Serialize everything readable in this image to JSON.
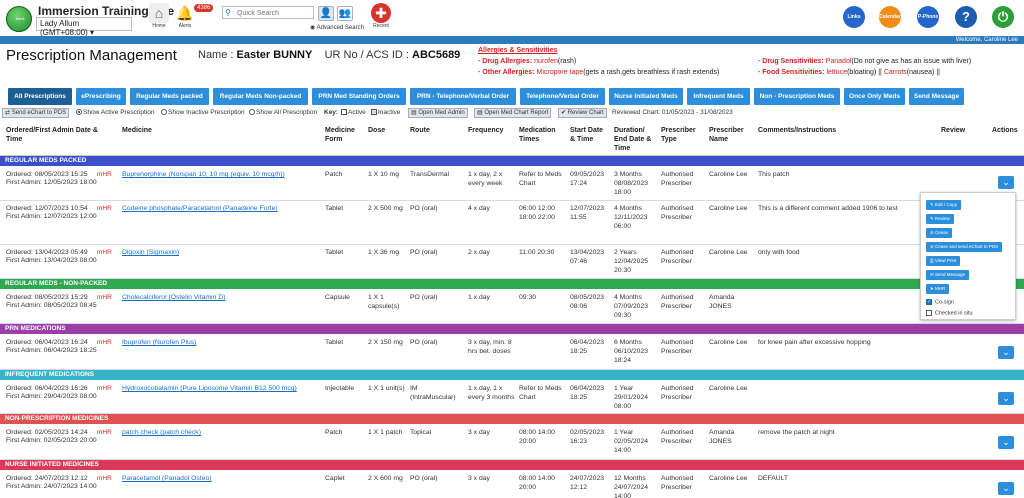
{
  "topbar": {
    "logo_text": "Medi",
    "site_title": "Immersion Training Site",
    "user_select": "Lady Allum (GMT+08:00)",
    "home_label": "Home",
    "alerts_label": "Alerts",
    "alerts_count": "4386",
    "search_placeholder": "Quick Search",
    "advanced_search": "Advanced Search",
    "recent_label": "Recent",
    "links_label": "Links",
    "calendar_label": "Calendar",
    "phone_label": "P-Phone",
    "welcome": "Welcome, Caroline Lee"
  },
  "header": {
    "title": "Prescription Management",
    "name_label": "Name :",
    "name_value": "Easter BUNNY",
    "ur_label": "UR No / ACS ID :",
    "ur_value": "ABC5689",
    "allergies_heading": "Allergies & Sensitivities",
    "drug_allergies_label": "Drug Allergies:",
    "drug_allergies_value": "nurofen",
    "drug_allergies_note": "(rash)",
    "other_allergies_label": "Other Allergies:",
    "other_allergies_value": "Micropore tape",
    "other_allergies_note": "(gets a rash,gets breathless if rash extends)",
    "drug_sens_label": "Drug Sensitivities:",
    "drug_sens_value": "Panadol",
    "drug_sens_note": "(Do not give as has an issue with liver)",
    "food_sens_label": "Food Sensitivities:",
    "food_sens_value1": "lettuce",
    "food_sens_note1": "(bloating) ||",
    "food_sens_value2": "Carrots",
    "food_sens_note2": "(nausea) ||"
  },
  "tabs": [
    "All Prescriptions",
    "ePrescribing",
    "Regular Meds packed",
    "Regular Meds Non-packed",
    "PRN Med Standing Orders",
    "PRN - Telephone/Verbal Order",
    "Telephone/Verbal Order",
    "Nurse Initiated Meds",
    "Infrequent Meds",
    "Non - Prescription Meds",
    "Once Only Meds",
    "Send Message"
  ],
  "toolbar": {
    "send_echart": "Send eChart to PDS",
    "show_active": "Show Active Prescription",
    "show_inactive": "Show Inactive Prescription",
    "show_all": "Show All Prescription",
    "key_label": "Key:",
    "active_label": "Active",
    "inactive_label": "Inactive",
    "open_med_admin": "Open Med Admin",
    "open_med_chart_report": "Open Med Chart Report",
    "review_chart": "Review Chart",
    "reviewed_chart": "Reviewed Chart: 01/05/2023 - 31/08/2023"
  },
  "columns": {
    "ordered": "Ordered/First Admin Date & Time",
    "medicine": "Medicine",
    "form": "Medicine Form",
    "dose": "Dose",
    "route": "Route",
    "frequency": "Frequency",
    "times": "Medication Times",
    "start": "Start Date & Time",
    "duration": "Duration/ End Date & Time",
    "prescriber_type": "Prescriber Type",
    "prescriber_name": "Prescriber Name",
    "comments": "Comments/Instructions",
    "review": "Review",
    "actions": "Actions"
  },
  "sections": {
    "regular_packed": "REGULAR MEDS PACKED",
    "regular_nonpacked": "REGULAR MEDS - NON-PACKED",
    "prn": "PRN MEDICATIONS",
    "infrequent": "INFREQUENT MEDICATIONS",
    "nonprescription": "NON-PRESCRIPTION MEDICINES",
    "nurse_initiated": "NURSE INITIATED MEDICINES"
  },
  "section_colors": {
    "regular_packed": "#3b4fc8",
    "regular_nonpacked": "#2fa84f",
    "prn": "#9b3fa6",
    "infrequent": "#36b3c9",
    "nonprescription": "#e05252",
    "nurse_initiated": "#d93a5a"
  },
  "rows": [
    {
      "ordered": "Ordered: 08/05/2023 15:25",
      "first": "First Admin: 12/05/2023 18:00",
      "mhr": "mHR",
      "medicine": "Buprenorphine (Norspan 10; 10 mg (equiv. 10 mcg/h))",
      "form": "Patch",
      "dose": "1 X 10 mg",
      "route": "TransDermal",
      "frequency": "1 x day, 2 x every week",
      "times": "Refer to Meds Chart",
      "start": "09/05/2023 17:24",
      "duration": "3 Months 08/08/2023 18:00",
      "ptype": "Authorised Prescriber",
      "pname": "Caroline Lee",
      "comments": "This patch"
    },
    {
      "ordered": "Ordered: 12/07/2023 10:54",
      "first": "First Admin: 12/07/2023 12:00",
      "mhr": "mHR",
      "medicine": "Codeine phosphate/Paracetamol (Panadeine Forte)",
      "form": "Tablet",
      "dose": "2 X 500 mg",
      "route": "PO (oral)",
      "frequency": "4 x day",
      "times": "06:00 12:00 18:00 22:00",
      "start": "12/07/2023 11:55",
      "duration": "4 Months 12/11/2023 06:00",
      "ptype": "Authorised Prescriber",
      "pname": "Caroline Lee",
      "comments": "This is a different comment added 1906 to test"
    },
    {
      "ordered": "Ordered: 13/04/2023 05:49",
      "first": "First Admin: 13/04/2023 08:00",
      "mhr": "mHR",
      "medicine": "Digoxin (Sigmaxin)",
      "form": "Tablet",
      "dose": "1 X 36 mg",
      "route": "PO (oral)",
      "frequency": "2 x day",
      "times": "11:00 20:30",
      "start": "13/04/2023 07:46",
      "duration": "2 Years 12/04/2025 20:30",
      "ptype": "Authorised Prescriber",
      "pname": "Caroline Lee",
      "comments": "only with food"
    },
    {
      "ordered": "Ordered: 08/05/2023 15:29",
      "first": "First Admin: 08/05/2023 08:45",
      "mhr": "mHR",
      "medicine": "Cholecalciferol (Ostelin Vitamin D)",
      "form": "Capsule",
      "dose": "1 X 1 capsule(s)",
      "route": "PO (oral)",
      "frequency": "1 x day",
      "times": "09:30",
      "start": "08/05/2023 08:06",
      "duration": "4 Months 07/09/2023 09:30",
      "ptype": "Authorised Prescriber",
      "pname": "Amanda JONES",
      "comments": ""
    },
    {
      "ordered": "Ordered: 06/04/2023 16:24",
      "first": "First Admin: 06/04/2023 18:25",
      "mhr": "mHR",
      "medicine": "Ibuprofen (Nurofen Plus)",
      "form": "Tablet",
      "dose": "2 X 150 mg",
      "route": "PO (oral)",
      "frequency": "3 x day, min. 8 hrs bet. doses",
      "times": "",
      "start": "06/04/2023 18:25",
      "duration": "6 Months 06/10/2023 18:24",
      "ptype": "Authorised Prescriber",
      "pname": "Caroline Lee",
      "comments": "for knee pain after excessive hopping"
    },
    {
      "ordered": "Ordered: 06/04/2023 16:26",
      "first": "First Admin: 29/04/2023 08:00",
      "mhr": "mHR",
      "medicine": "Hydroxocobalamin (Pure Liposome Vitamin B12 500 mcg)",
      "form": "Injectable",
      "dose": "1 X 1 unit(s)",
      "route": "IM (IntraMuscular)",
      "frequency": "1 x day, 1 x every 3 months",
      "times": "Refer to Meds Chart",
      "start": "06/04/2023 18:25",
      "duration": "1 Year 29/01/2024 08:00",
      "ptype": "Authorised Prescriber",
      "pname": "Caroline Lee",
      "comments": ""
    },
    {
      "ordered": "Ordered: 02/05/2023 14:24",
      "first": "First Admin: 02/05/2023 20:00",
      "mhr": "mHR",
      "medicine": "patch check (patch check)",
      "form": "Patch",
      "dose": "1 X 1 patch",
      "route": "Topical",
      "frequency": "3 x day",
      "times": "08:00 14:00 20:00",
      "start": "02/05/2023 16:23",
      "duration": "1 Year 02/05/2024 14:00",
      "ptype": "Authorised Prescriber",
      "pname": "Amanda JONES",
      "comments": "remove the patch at night"
    },
    {
      "ordered": "Ordered: 24/07/2023 12:12",
      "first": "First Admin: 24/07/2023 14:00",
      "mhr": "mHR",
      "medicine": "Paracetamol (Panadol Osteo)",
      "form": "Caplet",
      "dose": "2 X 600 mg",
      "route": "PO (oral)",
      "frequency": "3 x day",
      "times": "08:00 14:00 20:00",
      "start": "24/07/2023 12:12",
      "duration": "12 Months 24/07/2024 14:00",
      "ptype": "Authorised Prescriber",
      "pname": "Caroline Lee",
      "comments": "DEFAULT"
    }
  ],
  "action_menu": {
    "edit": "Edit / Copy",
    "review": "Review",
    "cease": "Cease",
    "cease_send": "Cease and send eChart to PDS",
    "view_print": "View/ Print",
    "send_message": "Send Message",
    "mhr": "MHR",
    "cosign": "Co-sign",
    "checked_in_situ": "Checked in situ"
  }
}
